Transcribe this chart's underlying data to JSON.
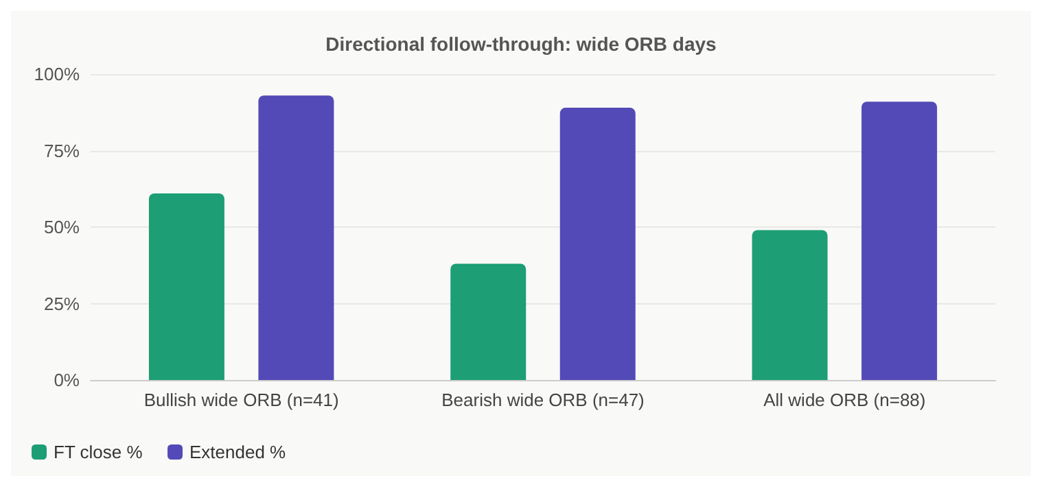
{
  "chart_data": {
    "type": "bar",
    "title": "Directional follow-through: wide ORB days",
    "categories": [
      "Bullish wide ORB (n=41)",
      "Bearish wide ORB (n=47)",
      "All wide ORB (n=88)"
    ],
    "series": [
      {
        "name": "FT close %",
        "color": "#1d9e75",
        "values": [
          61,
          38,
          49
        ]
      },
      {
        "name": "Extended %",
        "color": "#534ab7",
        "values": [
          93,
          89,
          91
        ]
      }
    ],
    "ylim": [
      0,
      100
    ],
    "yticks": [
      {
        "value": 0,
        "label": "0%"
      },
      {
        "value": 25,
        "label": "25%"
      },
      {
        "value": 50,
        "label": "50%"
      },
      {
        "value": 75,
        "label": "75%"
      },
      {
        "value": 100,
        "label": "100%"
      }
    ],
    "grid": "y",
    "legend": "bottom left"
  }
}
